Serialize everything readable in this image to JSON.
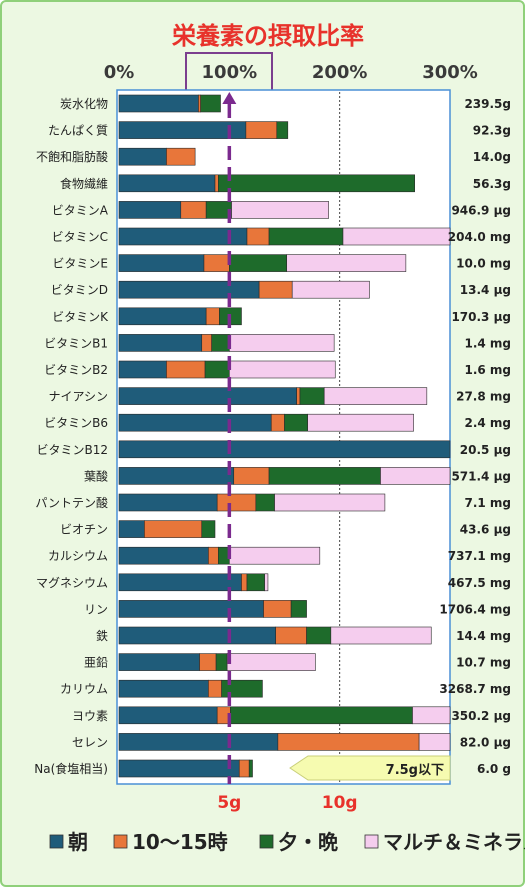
{
  "chart_data": {
    "type": "bar",
    "stacked": true,
    "orientation": "horizontal",
    "title": "栄養素の摂取比率",
    "x_ticks": [
      "0%",
      "100%",
      "200%",
      "300%"
    ],
    "xlim": [
      0,
      300
    ],
    "reference_line": 100,
    "series": [
      {
        "name": "朝",
        "color": "#1f5c7a"
      },
      {
        "name": "10～15時",
        "color": "#e8763a"
      },
      {
        "name": "夕・晩",
        "color": "#1e6b2b"
      },
      {
        "name": "マルチ＆ミネラル",
        "color": "#f5cdee"
      }
    ],
    "rows": [
      {
        "name": "炭水化物",
        "amount": "239.5g",
        "values": [
          72,
          2,
          18,
          0
        ]
      },
      {
        "name": "たんぱく質",
        "amount": "92.3g",
        "values": [
          115,
          28,
          10,
          0
        ]
      },
      {
        "name": "不飽和脂肪酸",
        "amount": "14.0g",
        "values": [
          43,
          26,
          0,
          0
        ]
      },
      {
        "name": "食物繊維",
        "amount": "56.3g",
        "values": [
          87,
          3,
          178,
          0
        ]
      },
      {
        "name": "ビタミンA",
        "amount": "946.9 μg",
        "values": [
          56,
          23,
          23,
          88
        ]
      },
      {
        "name": "ビタミンC",
        "amount": "204.0 mg",
        "values": [
          116,
          20,
          67,
          97
        ]
      },
      {
        "name": "ビタミンE",
        "amount": "10.0 mg",
        "values": [
          77,
          23,
          52,
          108
        ]
      },
      {
        "name": "ビタミンD",
        "amount": "13.4 μg",
        "values": [
          127,
          30,
          0,
          70
        ]
      },
      {
        "name": "ビタミンK",
        "amount": "170.3 μg",
        "values": [
          79,
          12,
          20,
          0
        ]
      },
      {
        "name": "ビタミンB1",
        "amount": "1.4 mg",
        "values": [
          75,
          9,
          16,
          95
        ]
      },
      {
        "name": "ビタミンB2",
        "amount": "1.6 mg",
        "values": [
          43,
          35,
          22,
          96
        ]
      },
      {
        "name": "ナイアシン",
        "amount": "27.8 mg",
        "values": [
          161,
          3,
          22,
          93
        ]
      },
      {
        "name": "ビタミンB6",
        "amount": "2.4 mg",
        "values": [
          138,
          12,
          21,
          96
        ]
      },
      {
        "name": "ビタミンB12",
        "amount": "20.5 μg",
        "values": [
          300,
          0,
          0,
          0
        ]
      },
      {
        "name": "葉酸",
        "amount": "571.4 μg",
        "values": [
          104,
          32,
          101,
          63
        ]
      },
      {
        "name": "パントテン酸",
        "amount": "7.1 mg",
        "values": [
          89,
          35,
          17,
          100
        ]
      },
      {
        "name": "ビオチン",
        "amount": "43.6 μg",
        "values": [
          23,
          52,
          12,
          0
        ]
      },
      {
        "name": "カルシウム",
        "amount": "737.1 mg",
        "values": [
          81,
          9,
          10,
          82
        ]
      },
      {
        "name": "マグネシウム",
        "amount": "467.5 mg",
        "values": [
          111,
          5,
          16,
          3
        ]
      },
      {
        "name": "リン",
        "amount": "1706.4 mg",
        "values": [
          131,
          25,
          14,
          0
        ]
      },
      {
        "name": "鉄",
        "amount": "14.4 mg",
        "values": [
          142,
          28,
          22,
          91
        ]
      },
      {
        "name": "亜鉛",
        "amount": "10.7 mg",
        "values": [
          73,
          15,
          10,
          80
        ]
      },
      {
        "name": "カリウム",
        "amount": "3268.7 mg",
        "values": [
          81,
          12,
          37,
          0
        ]
      },
      {
        "name": "ヨウ素",
        "amount": "350.2 μg",
        "values": [
          89,
          12,
          165,
          34
        ]
      },
      {
        "name": "セレン",
        "amount": "82.0 μg",
        "values": [
          144,
          128,
          0,
          28
        ]
      },
      {
        "name": "Na(食塩相当)",
        "amount": "6.0 g",
        "values": [
          109,
          9,
          3,
          0
        ]
      }
    ],
    "na_axis_labels": [
      "5g",
      "10g"
    ],
    "na_axis_values": [
      5,
      10
    ],
    "na_limit_label": "7.5g以下"
  }
}
